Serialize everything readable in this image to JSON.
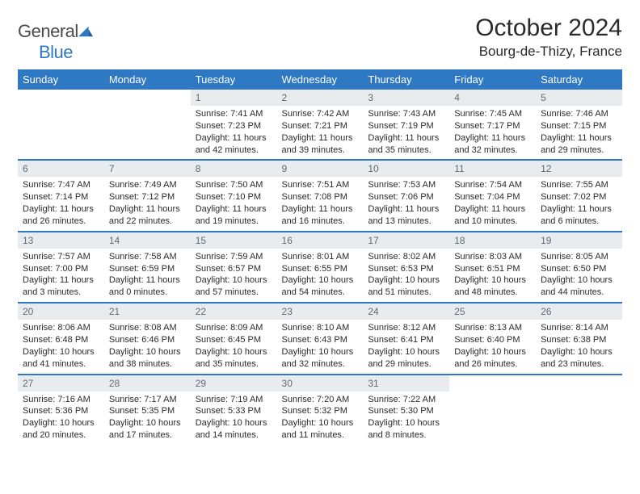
{
  "brand": {
    "name_a": "General",
    "name_b": "Blue"
  },
  "title": "October 2024",
  "location": "Bourg-de-Thizy, France",
  "colors": {
    "accent": "#2f78c4",
    "daynum_bg": "#e9ecef",
    "daynum_fg": "#5f6b75",
    "text": "#2b2b2b",
    "bg": "#ffffff"
  },
  "fonts": {
    "title_size": 30,
    "location_size": 17,
    "dow_size": 13,
    "daynum_size": 12,
    "body_size": 11
  },
  "dow": [
    "Sunday",
    "Monday",
    "Tuesday",
    "Wednesday",
    "Thursday",
    "Friday",
    "Saturday"
  ],
  "weeks": [
    [
      {
        "blank": true
      },
      {
        "blank": true
      },
      {
        "num": "1",
        "sunrise": "Sunrise: 7:41 AM",
        "sunset": "Sunset: 7:23 PM",
        "daylight": "Daylight: 11 hours and 42 minutes."
      },
      {
        "num": "2",
        "sunrise": "Sunrise: 7:42 AM",
        "sunset": "Sunset: 7:21 PM",
        "daylight": "Daylight: 11 hours and 39 minutes."
      },
      {
        "num": "3",
        "sunrise": "Sunrise: 7:43 AM",
        "sunset": "Sunset: 7:19 PM",
        "daylight": "Daylight: 11 hours and 35 minutes."
      },
      {
        "num": "4",
        "sunrise": "Sunrise: 7:45 AM",
        "sunset": "Sunset: 7:17 PM",
        "daylight": "Daylight: 11 hours and 32 minutes."
      },
      {
        "num": "5",
        "sunrise": "Sunrise: 7:46 AM",
        "sunset": "Sunset: 7:15 PM",
        "daylight": "Daylight: 11 hours and 29 minutes."
      }
    ],
    [
      {
        "num": "6",
        "sunrise": "Sunrise: 7:47 AM",
        "sunset": "Sunset: 7:14 PM",
        "daylight": "Daylight: 11 hours and 26 minutes."
      },
      {
        "num": "7",
        "sunrise": "Sunrise: 7:49 AM",
        "sunset": "Sunset: 7:12 PM",
        "daylight": "Daylight: 11 hours and 22 minutes."
      },
      {
        "num": "8",
        "sunrise": "Sunrise: 7:50 AM",
        "sunset": "Sunset: 7:10 PM",
        "daylight": "Daylight: 11 hours and 19 minutes."
      },
      {
        "num": "9",
        "sunrise": "Sunrise: 7:51 AM",
        "sunset": "Sunset: 7:08 PM",
        "daylight": "Daylight: 11 hours and 16 minutes."
      },
      {
        "num": "10",
        "sunrise": "Sunrise: 7:53 AM",
        "sunset": "Sunset: 7:06 PM",
        "daylight": "Daylight: 11 hours and 13 minutes."
      },
      {
        "num": "11",
        "sunrise": "Sunrise: 7:54 AM",
        "sunset": "Sunset: 7:04 PM",
        "daylight": "Daylight: 11 hours and 10 minutes."
      },
      {
        "num": "12",
        "sunrise": "Sunrise: 7:55 AM",
        "sunset": "Sunset: 7:02 PM",
        "daylight": "Daylight: 11 hours and 6 minutes."
      }
    ],
    [
      {
        "num": "13",
        "sunrise": "Sunrise: 7:57 AM",
        "sunset": "Sunset: 7:00 PM",
        "daylight": "Daylight: 11 hours and 3 minutes."
      },
      {
        "num": "14",
        "sunrise": "Sunrise: 7:58 AM",
        "sunset": "Sunset: 6:59 PM",
        "daylight": "Daylight: 11 hours and 0 minutes."
      },
      {
        "num": "15",
        "sunrise": "Sunrise: 7:59 AM",
        "sunset": "Sunset: 6:57 PM",
        "daylight": "Daylight: 10 hours and 57 minutes."
      },
      {
        "num": "16",
        "sunrise": "Sunrise: 8:01 AM",
        "sunset": "Sunset: 6:55 PM",
        "daylight": "Daylight: 10 hours and 54 minutes."
      },
      {
        "num": "17",
        "sunrise": "Sunrise: 8:02 AM",
        "sunset": "Sunset: 6:53 PM",
        "daylight": "Daylight: 10 hours and 51 minutes."
      },
      {
        "num": "18",
        "sunrise": "Sunrise: 8:03 AM",
        "sunset": "Sunset: 6:51 PM",
        "daylight": "Daylight: 10 hours and 48 minutes."
      },
      {
        "num": "19",
        "sunrise": "Sunrise: 8:05 AM",
        "sunset": "Sunset: 6:50 PM",
        "daylight": "Daylight: 10 hours and 44 minutes."
      }
    ],
    [
      {
        "num": "20",
        "sunrise": "Sunrise: 8:06 AM",
        "sunset": "Sunset: 6:48 PM",
        "daylight": "Daylight: 10 hours and 41 minutes."
      },
      {
        "num": "21",
        "sunrise": "Sunrise: 8:08 AM",
        "sunset": "Sunset: 6:46 PM",
        "daylight": "Daylight: 10 hours and 38 minutes."
      },
      {
        "num": "22",
        "sunrise": "Sunrise: 8:09 AM",
        "sunset": "Sunset: 6:45 PM",
        "daylight": "Daylight: 10 hours and 35 minutes."
      },
      {
        "num": "23",
        "sunrise": "Sunrise: 8:10 AM",
        "sunset": "Sunset: 6:43 PM",
        "daylight": "Daylight: 10 hours and 32 minutes."
      },
      {
        "num": "24",
        "sunrise": "Sunrise: 8:12 AM",
        "sunset": "Sunset: 6:41 PM",
        "daylight": "Daylight: 10 hours and 29 minutes."
      },
      {
        "num": "25",
        "sunrise": "Sunrise: 8:13 AM",
        "sunset": "Sunset: 6:40 PM",
        "daylight": "Daylight: 10 hours and 26 minutes."
      },
      {
        "num": "26",
        "sunrise": "Sunrise: 8:14 AM",
        "sunset": "Sunset: 6:38 PM",
        "daylight": "Daylight: 10 hours and 23 minutes."
      }
    ],
    [
      {
        "num": "27",
        "sunrise": "Sunrise: 7:16 AM",
        "sunset": "Sunset: 5:36 PM",
        "daylight": "Daylight: 10 hours and 20 minutes."
      },
      {
        "num": "28",
        "sunrise": "Sunrise: 7:17 AM",
        "sunset": "Sunset: 5:35 PM",
        "daylight": "Daylight: 10 hours and 17 minutes."
      },
      {
        "num": "29",
        "sunrise": "Sunrise: 7:19 AM",
        "sunset": "Sunset: 5:33 PM",
        "daylight": "Daylight: 10 hours and 14 minutes."
      },
      {
        "num": "30",
        "sunrise": "Sunrise: 7:20 AM",
        "sunset": "Sunset: 5:32 PM",
        "daylight": "Daylight: 10 hours and 11 minutes."
      },
      {
        "num": "31",
        "sunrise": "Sunrise: 7:22 AM",
        "sunset": "Sunset: 5:30 PM",
        "daylight": "Daylight: 10 hours and 8 minutes."
      },
      {
        "blank": true
      },
      {
        "blank": true
      }
    ]
  ]
}
